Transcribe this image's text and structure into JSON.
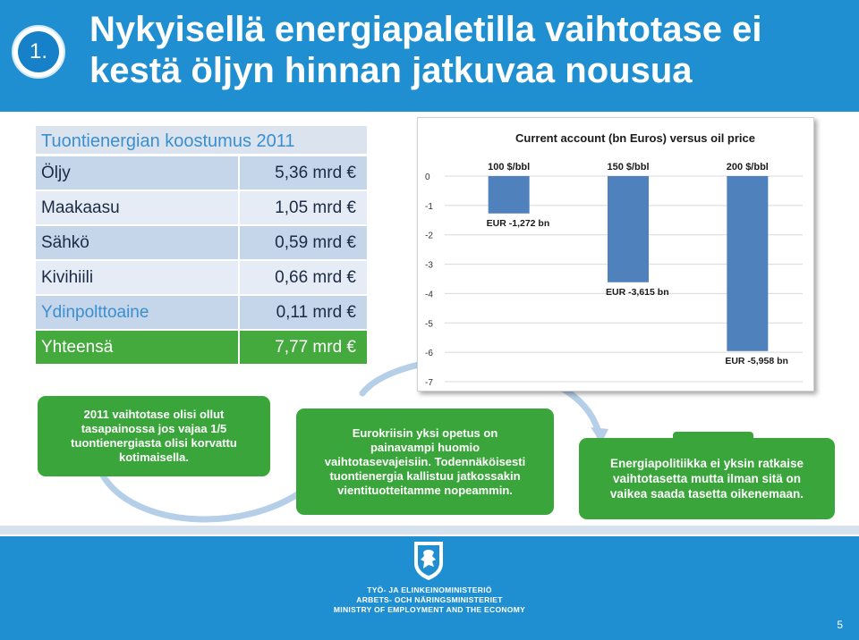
{
  "header": {
    "badge": "1.",
    "title_line1": "Nykyisellä energiapaletilla vaihtotase ei",
    "title_line2": "kestä öljyn hinnan jatkuvaa nousua"
  },
  "import_table": {
    "heading": "Tuontienergian koostumus 2011",
    "rows": [
      {
        "label": "Öljy",
        "value": "5,36 mrd €"
      },
      {
        "label": "Maakaasu",
        "value": "1,05 mrd €"
      },
      {
        "label": "Sähkö",
        "value": "0,59 mrd €"
      },
      {
        "label": "Kivihiili",
        "value": "0,66 mrd €"
      },
      {
        "label": "Ydinpolttoaine",
        "value": "0,11 mrd €"
      }
    ],
    "total": {
      "label": "Yhteensä",
      "value": "7,77 mrd €"
    }
  },
  "chart_data": {
    "type": "bar",
    "title": "Current account (bn Euros) versus oil price",
    "categories": [
      "100 $/bbl",
      "150 $/bbl",
      "200 $/bbl"
    ],
    "values": [
      -1.272,
      -3.615,
      -5.958
    ],
    "data_labels": [
      "EUR -1,272 bn",
      "EUR -3,615 bn",
      "EUR -5,958 bn"
    ],
    "ylim": [
      -7,
      0
    ],
    "yticks": [
      "0",
      "-1",
      "-2",
      "-3",
      "-4",
      "-5",
      "-6",
      "-7"
    ],
    "grid": true,
    "bar_color": "#4f81bd"
  },
  "boxes": {
    "box1": [
      "2011 vaihtotase olisi ollut",
      "tasapainossa jos vajaa 1/5",
      "tuontienergiasta olisi korvattu",
      "kotimaisella."
    ],
    "box2": [
      "Eurokriisin yksi opetus on",
      "painavampi huomio",
      "vaihtotasevajeisiin. Todennäköisesti",
      "tuontienergia kallistuu jatkossakin",
      "vientituotteitamme nopeammin."
    ],
    "box3": [
      "Energiapolitiikka ei yksin ratkaise",
      "vaihtotasetta mutta ilman sitä on",
      "vaikea saada tasetta  oikenemaan."
    ]
  },
  "footer": {
    "ministry_line1": "TYÖ- JA ELINKEINOMINISTERIÖ",
    "ministry_line2": "ARBETS- OCH NÄRINGSMINISTERIET",
    "ministry_line3": "MINISTRY OF EMPLOYMENT AND THE ECONOMY",
    "page_number": "5"
  },
  "colors": {
    "header_blue": "#1f8fd2",
    "green": "#3aa53a",
    "bar_blue": "#4f81bd"
  }
}
